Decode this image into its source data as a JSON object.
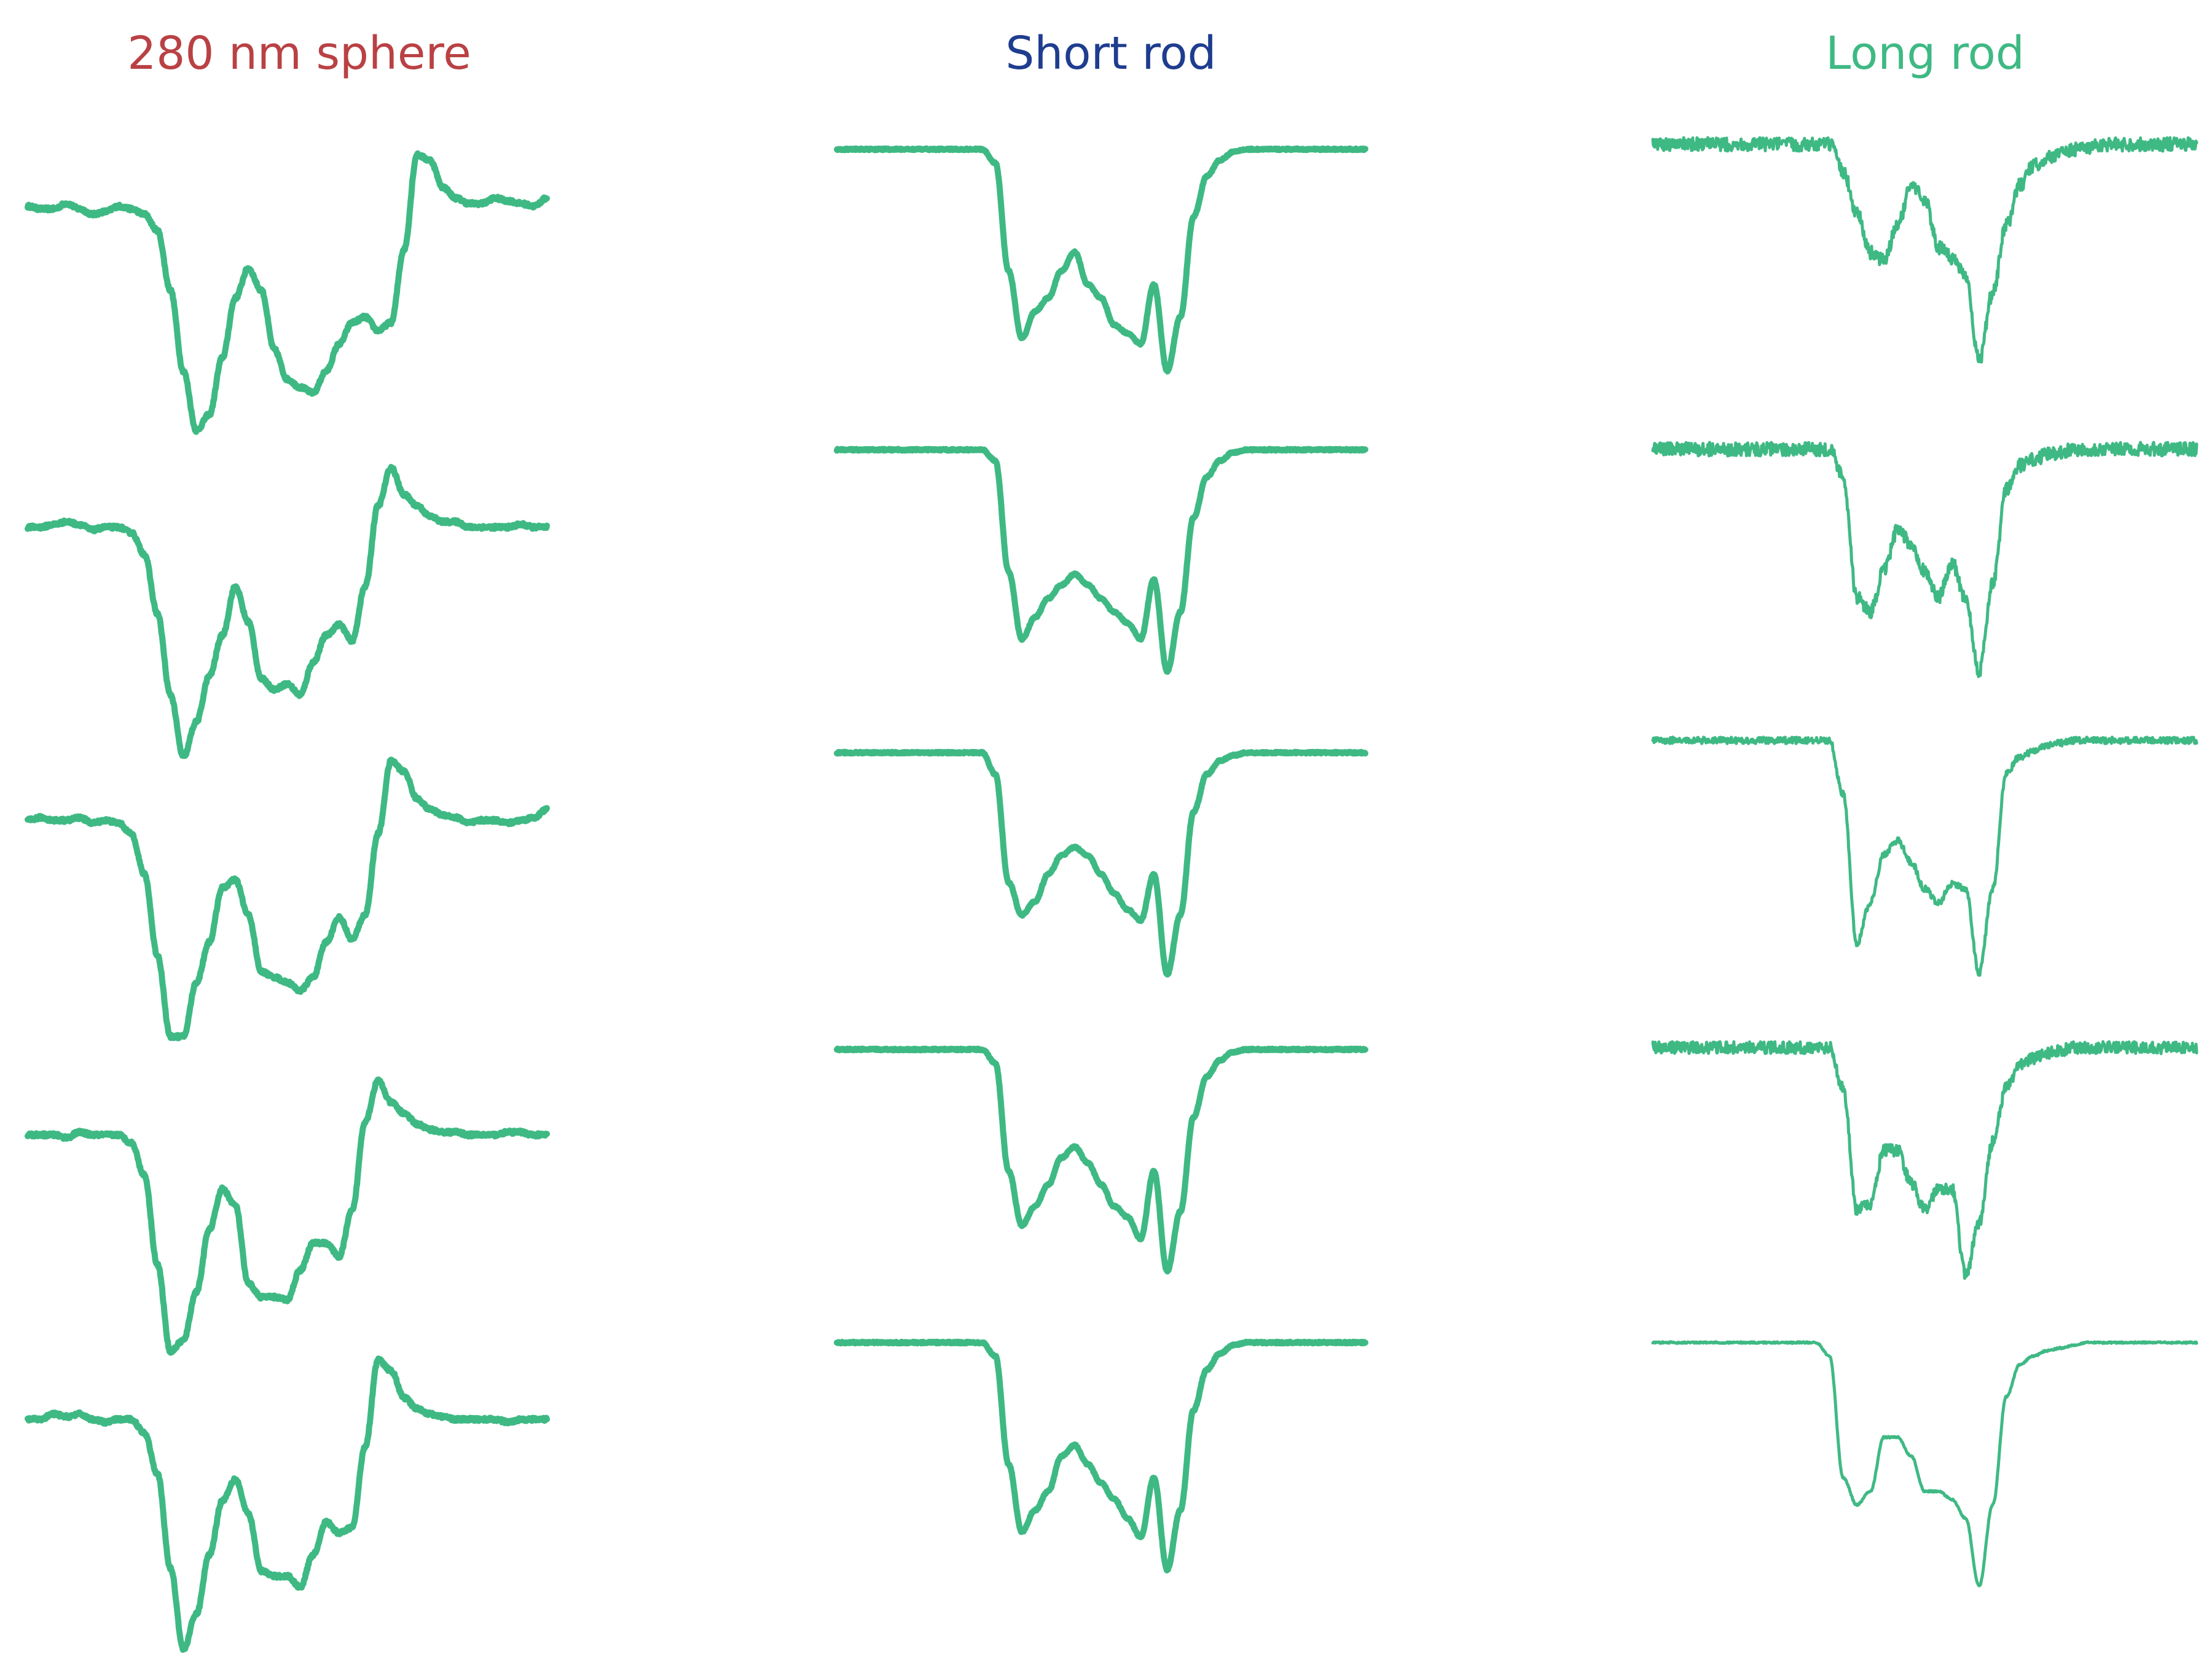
{
  "colors": {
    "trace": "#3fb984",
    "sphere_title": "#b94144",
    "short_title": "#1f3d8f",
    "long_title": "#3fb984"
  },
  "chart_data": [
    {
      "type": "line",
      "title": "280 nm sphere",
      "axes_visible": false,
      "grid": false,
      "traces": [
        {
          "noise": 0.006,
          "values": [
            0.01,
            0.0,
            0.0,
            0.02,
            0.0,
            -0.02,
            -0.01,
            0.01,
            0.0,
            -0.02,
            -0.08,
            -0.3,
            -0.6,
            -0.82,
            -0.76,
            -0.55,
            -0.33,
            -0.22,
            -0.3,
            -0.52,
            -0.63,
            -0.66,
            -0.68,
            -0.6,
            -0.5,
            -0.42,
            -0.4,
            -0.45,
            -0.42,
            -0.15,
            0.2,
            0.18,
            0.08,
            0.04,
            0.02,
            0.02,
            0.04,
            0.03,
            0.02,
            0.01,
            0.04
          ]
        },
        {
          "noise": 0.006,
          "values": [
            0.0,
            0.0,
            0.01,
            0.02,
            0.01,
            -0.01,
            0.0,
            0.0,
            -0.02,
            -0.1,
            -0.32,
            -0.62,
            -0.85,
            -0.72,
            -0.55,
            -0.4,
            -0.22,
            -0.35,
            -0.56,
            -0.6,
            -0.58,
            -0.62,
            -0.5,
            -0.4,
            -0.36,
            -0.42,
            -0.22,
            0.08,
            0.22,
            0.12,
            0.08,
            0.04,
            0.02,
            0.02,
            0.0,
            0.0,
            0.0,
            0.0,
            0.01,
            0.0,
            0.0
          ]
        },
        {
          "noise": 0.006,
          "values": [
            0.0,
            0.01,
            0.0,
            0.0,
            0.01,
            -0.01,
            0.0,
            -0.01,
            -0.05,
            -0.2,
            -0.5,
            -0.8,
            -0.8,
            -0.6,
            -0.45,
            -0.25,
            -0.22,
            -0.35,
            -0.56,
            -0.58,
            -0.6,
            -0.63,
            -0.58,
            -0.45,
            -0.36,
            -0.44,
            -0.35,
            -0.05,
            0.22,
            0.18,
            0.08,
            0.04,
            0.02,
            0.01,
            -0.01,
            0.0,
            0.0,
            -0.01,
            0.0,
            0.01,
            0.04
          ]
        },
        {
          "noise": 0.006,
          "values": [
            0.0,
            0.0,
            0.0,
            -0.01,
            0.01,
            0.0,
            0.0,
            0.0,
            -0.03,
            -0.15,
            -0.48,
            -0.8,
            -0.76,
            -0.58,
            -0.35,
            -0.2,
            -0.26,
            -0.55,
            -0.6,
            -0.6,
            -0.61,
            -0.5,
            -0.4,
            -0.4,
            -0.45,
            -0.28,
            0.05,
            0.2,
            0.12,
            0.08,
            0.04,
            0.02,
            0.01,
            0.01,
            0.0,
            0.0,
            0.0,
            0.01,
            0.01,
            0.0,
            0.0
          ]
        },
        {
          "noise": 0.006,
          "values": [
            0.0,
            0.0,
            0.02,
            0.01,
            0.02,
            0.0,
            -0.01,
            0.0,
            0.0,
            -0.05,
            -0.2,
            -0.55,
            -0.85,
            -0.72,
            -0.5,
            -0.3,
            -0.22,
            -0.35,
            -0.56,
            -0.58,
            -0.58,
            -0.62,
            -0.5,
            -0.38,
            -0.42,
            -0.4,
            -0.1,
            0.22,
            0.18,
            0.08,
            0.04,
            0.02,
            0.01,
            0.0,
            0.0,
            0.0,
            0.0,
            -0.01,
            0.0,
            0.0,
            0.0
          ]
        }
      ]
    },
    {
      "type": "line",
      "title": "Short rod",
      "axes_visible": false,
      "grid": false,
      "traces": [
        {
          "noise": 0.003,
          "values": [
            0.0,
            0.0,
            0.0,
            0.0,
            0.0,
            0.0,
            0.0,
            0.0,
            0.0,
            0.0,
            0.0,
            0.0,
            -0.05,
            -0.45,
            -0.7,
            -0.6,
            -0.55,
            -0.45,
            -0.38,
            -0.5,
            -0.55,
            -0.65,
            -0.68,
            -0.72,
            -0.5,
            -0.82,
            -0.62,
            -0.25,
            -0.1,
            -0.04,
            -0.01,
            0.0,
            0.0,
            0.0,
            0.0,
            0.0,
            0.0,
            0.0,
            0.0,
            0.0,
            0.0
          ]
        },
        {
          "noise": 0.003,
          "values": [
            0.0,
            0.0,
            0.0,
            0.0,
            0.0,
            0.0,
            0.0,
            0.0,
            0.0,
            0.0,
            0.0,
            0.0,
            -0.04,
            -0.45,
            -0.7,
            -0.62,
            -0.55,
            -0.5,
            -0.46,
            -0.5,
            -0.55,
            -0.6,
            -0.64,
            -0.7,
            -0.48,
            -0.82,
            -0.6,
            -0.25,
            -0.1,
            -0.04,
            -0.01,
            0.0,
            0.0,
            0.0,
            0.0,
            0.0,
            0.0,
            0.0,
            0.0,
            0.0,
            0.0
          ]
        },
        {
          "noise": 0.003,
          "values": [
            0.0,
            0.0,
            0.0,
            0.0,
            0.0,
            0.0,
            0.0,
            0.0,
            0.0,
            0.0,
            0.0,
            0.0,
            -0.08,
            -0.48,
            -0.6,
            -0.55,
            -0.45,
            -0.38,
            -0.35,
            -0.38,
            -0.45,
            -0.52,
            -0.58,
            -0.62,
            -0.45,
            -0.82,
            -0.6,
            -0.22,
            -0.08,
            -0.03,
            -0.01,
            0.0,
            0.0,
            0.0,
            0.0,
            0.0,
            0.0,
            0.0,
            0.0,
            0.0,
            0.0
          ]
        },
        {
          "noise": 0.003,
          "values": [
            0.0,
            0.0,
            0.0,
            0.0,
            0.0,
            0.0,
            0.0,
            0.0,
            0.0,
            0.0,
            0.0,
            0.0,
            -0.05,
            -0.45,
            -0.65,
            -0.58,
            -0.5,
            -0.4,
            -0.36,
            -0.42,
            -0.5,
            -0.58,
            -0.62,
            -0.7,
            -0.45,
            -0.82,
            -0.6,
            -0.25,
            -0.1,
            -0.04,
            -0.01,
            0.0,
            0.0,
            0.0,
            0.0,
            0.0,
            0.0,
            0.0,
            0.0,
            0.0,
            0.0
          ]
        },
        {
          "noise": 0.003,
          "values": [
            0.0,
            0.0,
            0.0,
            0.0,
            0.0,
            0.0,
            0.0,
            0.0,
            0.0,
            0.0,
            0.0,
            0.0,
            -0.05,
            -0.45,
            -0.7,
            -0.62,
            -0.55,
            -0.42,
            -0.38,
            -0.45,
            -0.52,
            -0.58,
            -0.65,
            -0.72,
            -0.5,
            -0.84,
            -0.62,
            -0.25,
            -0.1,
            -0.04,
            -0.01,
            0.0,
            0.0,
            0.0,
            0.0,
            0.0,
            0.0,
            0.0,
            0.0,
            0.0,
            0.0
          ]
        }
      ]
    },
    {
      "type": "line",
      "title": "Long rod",
      "axes_visible": false,
      "grid": false,
      "traces": [
        {
          "noise": 0.025,
          "values": [
            0.0,
            0.0,
            0.0,
            0.0,
            0.0,
            0.0,
            0.0,
            0.0,
            0.0,
            0.0,
            0.0,
            0.0,
            0.0,
            0.0,
            -0.1,
            -0.25,
            -0.4,
            -0.43,
            -0.3,
            -0.15,
            -0.2,
            -0.38,
            -0.42,
            -0.48,
            -0.8,
            -0.55,
            -0.3,
            -0.15,
            -0.08,
            -0.05,
            -0.03,
            -0.02,
            -0.01,
            0.0,
            0.0,
            0.0,
            0.0,
            0.0,
            0.0,
            0.0,
            0.0
          ]
        },
        {
          "noise": 0.025,
          "values": [
            0.0,
            0.0,
            0.0,
            0.0,
            0.0,
            0.0,
            0.0,
            0.0,
            0.0,
            0.0,
            0.0,
            0.0,
            0.0,
            0.0,
            -0.1,
            -0.55,
            -0.6,
            -0.45,
            -0.3,
            -0.35,
            -0.45,
            -0.55,
            -0.42,
            -0.55,
            -0.82,
            -0.5,
            -0.15,
            -0.06,
            -0.04,
            -0.02,
            -0.01,
            0.0,
            0.0,
            0.0,
            0.0,
            0.0,
            0.0,
            0.0,
            0.0,
            0.0,
            0.0
          ]
        },
        {
          "noise": 0.012,
          "values": [
            0.0,
            0.0,
            0.0,
            0.0,
            0.0,
            0.0,
            0.0,
            0.0,
            0.0,
            0.0,
            0.0,
            0.0,
            0.0,
            0.0,
            -0.2,
            -0.75,
            -0.6,
            -0.42,
            -0.37,
            -0.45,
            -0.55,
            -0.6,
            -0.53,
            -0.55,
            -0.86,
            -0.55,
            -0.12,
            -0.06,
            -0.04,
            -0.02,
            -0.01,
            0.0,
            0.0,
            0.0,
            0.0,
            0.0,
            0.0,
            0.0,
            0.0,
            0.0,
            0.0
          ]
        },
        {
          "noise": 0.022,
          "values": [
            0.0,
            0.0,
            0.0,
            0.0,
            0.0,
            0.0,
            0.0,
            0.0,
            0.0,
            0.0,
            0.0,
            0.0,
            0.0,
            0.0,
            -0.15,
            -0.6,
            -0.58,
            -0.38,
            -0.38,
            -0.5,
            -0.6,
            -0.52,
            -0.52,
            -0.84,
            -0.65,
            -0.35,
            -0.15,
            -0.06,
            -0.04,
            -0.02,
            -0.01,
            0.0,
            0.0,
            0.0,
            0.0,
            0.0,
            0.0,
            0.0,
            0.0,
            0.0,
            0.0
          ]
        },
        {
          "noise": 0.003,
          "values": [
            0.0,
            0.0,
            0.0,
            0.0,
            0.0,
            0.0,
            0.0,
            0.0,
            0.0,
            0.0,
            0.0,
            0.0,
            0.0,
            -0.05,
            -0.5,
            -0.6,
            -0.55,
            -0.35,
            -0.35,
            -0.42,
            -0.55,
            -0.55,
            -0.58,
            -0.65,
            -0.9,
            -0.6,
            -0.2,
            -0.08,
            -0.05,
            -0.03,
            -0.02,
            -0.01,
            0.0,
            0.0,
            0.0,
            0.0,
            0.0,
            0.0,
            0.0,
            0.0,
            0.0
          ]
        }
      ]
    }
  ]
}
